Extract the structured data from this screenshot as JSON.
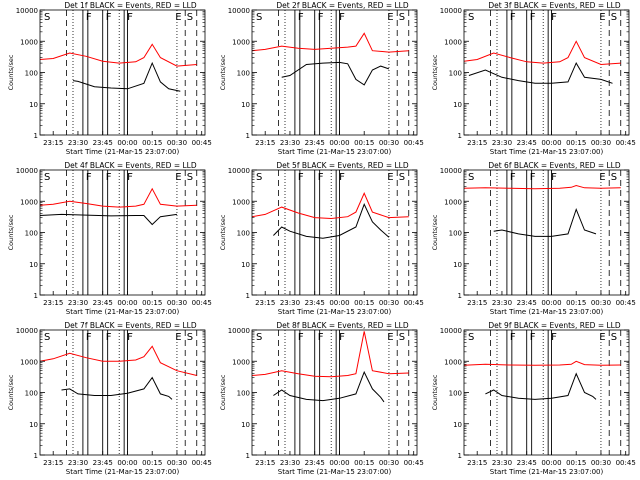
{
  "xticks": [
    "23:15",
    "23:30",
    "23:45",
    "00:00",
    "00:15",
    "00:30",
    "00:45"
  ],
  "xlabel": "Start Time (21-Mar-15 23:07:00)",
  "ylabel": "Counts/sec",
  "ytick_labels": [
    "1",
    "10",
    "100",
    "1000",
    "10000"
  ],
  "colors": {
    "events": "#000000",
    "lld": "#ff0000"
  },
  "chart_data": [
    {
      "type": "line",
      "title": "Det 1f BLACK = Events, RED = LLD",
      "letters": [
        "S",
        "F",
        "F",
        "F",
        "E",
        "S"
      ],
      "ylim": [
        1,
        10000
      ],
      "yscale": "log",
      "series": [
        {
          "name": "Events",
          "color": "#000000",
          "x": [
            "23:27",
            "23:30",
            "23:40",
            "23:50",
            "00:00",
            "00:10",
            "00:15",
            "00:20",
            "00:25",
            "00:32"
          ],
          "values": [
            55,
            52,
            35,
            32,
            30,
            45,
            200,
            50,
            30,
            25
          ]
        },
        {
          "name": "LLD",
          "color": "#ff0000",
          "x": [
            "23:07",
            "23:15",
            "23:25",
            "23:35",
            "23:45",
            "23:55",
            "00:05",
            "00:10",
            "00:15",
            "00:20",
            "00:30",
            "00:42"
          ],
          "values": [
            260,
            280,
            420,
            330,
            230,
            200,
            220,
            300,
            800,
            300,
            160,
            180
          ]
        }
      ]
    },
    {
      "type": "line",
      "title": "Det 2f BLACK = Events, RED = LLD",
      "letters": [
        "S",
        "F",
        "F",
        "F",
        "E",
        "S"
      ],
      "ylim": [
        1,
        10000
      ],
      "yscale": "log",
      "series": [
        {
          "name": "Events",
          "color": "#000000",
          "x": [
            "23:25",
            "23:30",
            "23:40",
            "23:50",
            "00:00",
            "00:05",
            "00:10",
            "00:15",
            "00:20",
            "00:25",
            "00:30"
          ],
          "values": [
            70,
            80,
            180,
            200,
            210,
            190,
            60,
            40,
            120,
            160,
            130
          ]
        },
        {
          "name": "LLD",
          "color": "#ff0000",
          "x": [
            "23:07",
            "23:15",
            "23:25",
            "23:35",
            "23:45",
            "23:55",
            "00:05",
            "00:10",
            "00:15",
            "00:20",
            "00:30",
            "00:42"
          ],
          "values": [
            500,
            550,
            700,
            600,
            550,
            600,
            650,
            700,
            1800,
            500,
            450,
            500
          ]
        }
      ]
    },
    {
      "type": "line",
      "title": "Det 3f BLACK = Events, RED = LLD",
      "letters": [
        "S",
        "F",
        "F",
        "F",
        "E",
        "S"
      ],
      "ylim": [
        1,
        10000
      ],
      "yscale": "log",
      "series": [
        {
          "name": "Events",
          "color": "#000000",
          "x": [
            "23:10",
            "23:20",
            "23:30",
            "23:40",
            "23:50",
            "00:00",
            "00:10",
            "00:15",
            "00:20",
            "00:30",
            "00:37"
          ],
          "values": [
            80,
            120,
            70,
            55,
            45,
            45,
            50,
            200,
            70,
            60,
            45
          ]
        },
        {
          "name": "LLD",
          "color": "#ff0000",
          "x": [
            "23:07",
            "23:15",
            "23:25",
            "23:35",
            "23:45",
            "23:55",
            "00:05",
            "00:10",
            "00:15",
            "00:20",
            "00:30",
            "00:42"
          ],
          "values": [
            230,
            260,
            420,
            300,
            220,
            200,
            220,
            300,
            1000,
            300,
            180,
            200
          ]
        }
      ]
    },
    {
      "type": "line",
      "title": "Det 4f BLACK = Events, RED = LLD",
      "letters": [
        "S",
        "F",
        "F",
        "F",
        "E",
        "S"
      ],
      "ylim": [
        1,
        10000
      ],
      "yscale": "log",
      "series": [
        {
          "name": "Events",
          "color": "#000000",
          "x": [
            "23:07",
            "23:20",
            "23:35",
            "23:50",
            "00:05",
            "00:10",
            "00:15",
            "00:20",
            "00:30"
          ],
          "values": [
            350,
            380,
            360,
            340,
            350,
            350,
            180,
            320,
            380
          ]
        },
        {
          "name": "LLD",
          "color": "#ff0000",
          "x": [
            "23:07",
            "23:15",
            "23:25",
            "23:35",
            "23:45",
            "23:55",
            "00:05",
            "00:10",
            "00:15",
            "00:20",
            "00:30",
            "00:42"
          ],
          "values": [
            750,
            800,
            1000,
            850,
            700,
            650,
            700,
            800,
            2500,
            800,
            700,
            750
          ]
        }
      ]
    },
    {
      "type": "line",
      "title": "Det 5f BLACK = Events, RED = LLD",
      "letters": [
        "S",
        "F",
        "F",
        "F",
        "E",
        "S"
      ],
      "ylim": [
        1,
        10000
      ],
      "yscale": "log",
      "series": [
        {
          "name": "Events",
          "color": "#000000",
          "x": [
            "23:20",
            "23:25",
            "23:30",
            "23:40",
            "23:50",
            "00:00",
            "00:10",
            "00:15",
            "00:20",
            "00:25",
            "00:30"
          ],
          "values": [
            80,
            150,
            110,
            75,
            65,
            80,
            150,
            800,
            220,
            120,
            70
          ]
        },
        {
          "name": "LLD",
          "color": "#ff0000",
          "x": [
            "23:07",
            "23:15",
            "23:25",
            "23:35",
            "23:45",
            "23:55",
            "00:05",
            "00:10",
            "00:15",
            "00:20",
            "00:30",
            "00:42"
          ],
          "values": [
            320,
            380,
            650,
            420,
            300,
            280,
            320,
            450,
            1800,
            450,
            300,
            320
          ]
        }
      ]
    },
    {
      "type": "line",
      "title": "Det 6f BLACK = Events, RED = LLD",
      "letters": [
        "S",
        "F",
        "F",
        "F",
        "E",
        "S"
      ],
      "ylim": [
        1,
        10000
      ],
      "yscale": "log",
      "series": [
        {
          "name": "Events",
          "color": "#000000",
          "x": [
            "23:25",
            "23:30",
            "23:40",
            "23:50",
            "00:00",
            "00:10",
            "00:15",
            "00:20",
            "00:27"
          ],
          "values": [
            110,
            120,
            90,
            75,
            75,
            90,
            550,
            120,
            90
          ]
        },
        {
          "name": "LLD",
          "color": "#ff0000",
          "x": [
            "23:07",
            "23:20",
            "23:35",
            "23:50",
            "00:05",
            "00:12",
            "00:15",
            "00:20",
            "00:30",
            "00:42"
          ],
          "values": [
            2600,
            2700,
            2600,
            2500,
            2600,
            2800,
            3200,
            2700,
            2600,
            2700
          ]
        }
      ]
    },
    {
      "type": "line",
      "title": "Det 7f BLACK = Events, RED = LLD",
      "letters": [
        "S",
        "F",
        "F",
        "F",
        "E",
        "S"
      ],
      "ylim": [
        1,
        10000
      ],
      "yscale": "log",
      "series": [
        {
          "name": "Events",
          "color": "#000000",
          "x": [
            "23:20",
            "23:25",
            "23:30",
            "23:40",
            "23:50",
            "00:00",
            "00:10",
            "00:15",
            "00:20",
            "00:25",
            "00:27"
          ],
          "values": [
            120,
            130,
            90,
            80,
            80,
            95,
            130,
            300,
            90,
            75,
            60
          ]
        },
        {
          "name": "LLD",
          "color": "#ff0000",
          "x": [
            "23:07",
            "23:15",
            "23:25",
            "23:35",
            "23:45",
            "23:55",
            "00:05",
            "00:10",
            "00:15",
            "00:20",
            "00:30",
            "00:42"
          ],
          "values": [
            1000,
            1200,
            1800,
            1300,
            1000,
            1000,
            1100,
            1400,
            3000,
            900,
            500,
            350
          ]
        }
      ]
    },
    {
      "type": "line",
      "title": "Det 8f BLACK = Events, RED = LLD",
      "letters": [
        "S",
        "F",
        "F",
        "F",
        "E",
        "S"
      ],
      "ylim": [
        1,
        10000
      ],
      "yscale": "log",
      "series": [
        {
          "name": "Events",
          "color": "#000000",
          "x": [
            "23:20",
            "23:25",
            "23:30",
            "23:40",
            "23:50",
            "00:00",
            "00:10",
            "00:15",
            "00:20",
            "00:25",
            "00:27"
          ],
          "values": [
            80,
            120,
            80,
            60,
            55,
            65,
            90,
            450,
            130,
            70,
            50
          ]
        },
        {
          "name": "LLD",
          "color": "#ff0000",
          "x": [
            "23:07",
            "23:15",
            "23:25",
            "23:35",
            "23:45",
            "23:55",
            "00:05",
            "00:10",
            "00:15",
            "00:20",
            "00:30",
            "00:42"
          ],
          "values": [
            350,
            380,
            500,
            400,
            330,
            320,
            350,
            400,
            9000,
            500,
            400,
            420
          ]
        }
      ]
    },
    {
      "type": "line",
      "title": "Det 9f BLACK = Events, RED = LLD",
      "letters": [
        "S",
        "F",
        "F",
        "F",
        "E",
        "S"
      ],
      "ylim": [
        1,
        10000
      ],
      "yscale": "log",
      "series": [
        {
          "name": "Events",
          "color": "#000000",
          "x": [
            "23:20",
            "23:25",
            "23:30",
            "23:40",
            "23:50",
            "00:00",
            "00:10",
            "00:15",
            "00:20",
            "00:25",
            "00:27"
          ],
          "values": [
            90,
            120,
            80,
            65,
            60,
            65,
            80,
            400,
            100,
            75,
            60
          ]
        },
        {
          "name": "LLD",
          "color": "#ff0000",
          "x": [
            "23:07",
            "23:20",
            "23:35",
            "23:50",
            "00:05",
            "00:12",
            "00:15",
            "00:20",
            "00:30",
            "00:42"
          ],
          "values": [
            750,
            800,
            760,
            740,
            760,
            800,
            1000,
            780,
            740,
            760
          ]
        }
      ]
    }
  ]
}
